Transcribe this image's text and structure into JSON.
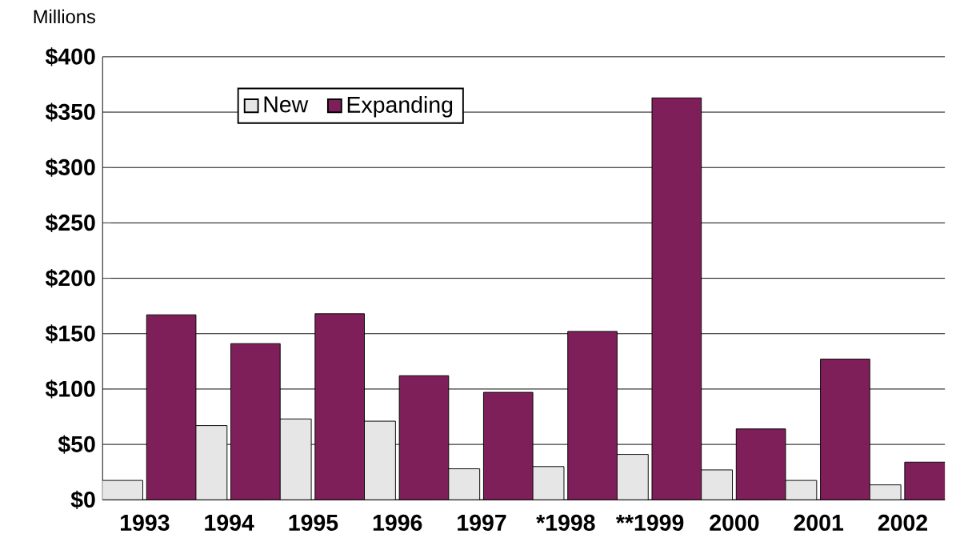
{
  "chart_data": {
    "type": "bar",
    "ylabel": "Millions",
    "categories": [
      "1993",
      "1994",
      "1995",
      "1996",
      "1997",
      "*1998",
      "**1999",
      "2000",
      "2001",
      "2002"
    ],
    "series": [
      {
        "name": "New",
        "color": "#e6e6e6",
        "values": [
          17.5,
          67,
          73,
          71,
          28,
          30,
          41,
          27,
          17.5,
          13.5
        ]
      },
      {
        "name": "Expanding",
        "color": "#7f1f5a",
        "values": [
          167,
          141,
          168,
          112,
          97,
          152,
          363,
          64,
          127,
          34
        ]
      }
    ],
    "ylim": [
      0,
      400
    ],
    "yticks": [
      {
        "value": 0,
        "label": "$0"
      },
      {
        "value": 50,
        "label": "$50"
      },
      {
        "value": 100,
        "label": "$100"
      },
      {
        "value": 150,
        "label": "$150"
      },
      {
        "value": 200,
        "label": "$200"
      },
      {
        "value": 250,
        "label": "$250"
      },
      {
        "value": 300,
        "label": "$300"
      },
      {
        "value": 350,
        "label": "$350"
      },
      {
        "value": 400,
        "label": "$400"
      }
    ],
    "grid": "y",
    "legend": "top left"
  }
}
